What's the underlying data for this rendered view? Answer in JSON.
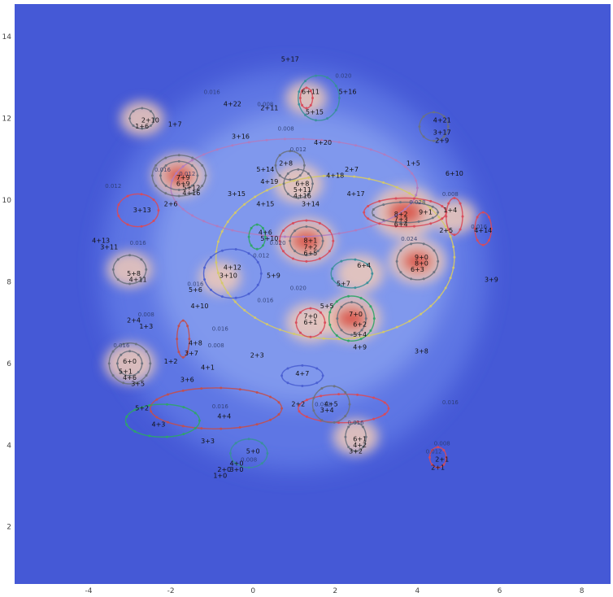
{
  "chart_data": {
    "type": "contour",
    "title": "",
    "xlabel": "",
    "ylabel": "",
    "xlim": [
      -5.8,
      8.7
    ],
    "ylim": [
      0.6,
      14.8
    ],
    "x_ticks": [
      -4,
      -2,
      0,
      2,
      4,
      6,
      8
    ],
    "y_ticks": [
      2,
      4,
      6,
      8,
      10,
      12,
      14
    ],
    "colors": {
      "background": "#4559d6",
      "low": "#5f79e6",
      "mid": "#9fb4f5",
      "high": "#f0c9b6",
      "peak": "#d9473a"
    },
    "density_peaks": [
      {
        "x": 3.7,
        "y": 9.7,
        "level": 1.0
      },
      {
        "x": 1.3,
        "y": 9.0,
        "level": 0.8
      },
      {
        "x": 4.0,
        "y": 8.5,
        "level": 0.75
      },
      {
        "x": 2.4,
        "y": 7.1,
        "level": 0.8
      },
      {
        "x": -1.8,
        "y": 10.6,
        "level": 0.7
      },
      {
        "x": 1.1,
        "y": 10.4,
        "level": 0.55
      },
      {
        "x": -3.0,
        "y": 6.0,
        "level": 0.6
      },
      {
        "x": -3.0,
        "y": 8.3,
        "level": 0.45
      },
      {
        "x": 1.4,
        "y": 7.0,
        "level": 0.55
      },
      {
        "x": 2.6,
        "y": 8.2,
        "level": 0.5
      },
      {
        "x": 2.5,
        "y": 4.2,
        "level": 0.45
      },
      {
        "x": 4.9,
        "y": 9.6,
        "level": 0.4
      },
      {
        "x": -0.8,
        "y": 8.1,
        "level": 0.35
      },
      {
        "x": 1.3,
        "y": 12.5,
        "level": 0.35
      },
      {
        "x": -2.7,
        "y": 12.0,
        "level": 0.4
      }
    ],
    "point_labels": [
      {
        "text": "5+17",
        "x": 0.9,
        "y": 13.4
      },
      {
        "text": "6+11",
        "x": 1.4,
        "y": 12.6
      },
      {
        "text": "5+16",
        "x": 2.3,
        "y": 12.6
      },
      {
        "text": "4+22",
        "x": -0.5,
        "y": 12.3
      },
      {
        "text": "2+11",
        "x": 0.4,
        "y": 12.2
      },
      {
        "text": "5+15",
        "x": 1.5,
        "y": 12.1
      },
      {
        "text": "4+21",
        "x": 4.6,
        "y": 11.9
      },
      {
        "text": "2+10",
        "x": -2.5,
        "y": 11.9
      },
      {
        "text": "1+7",
        "x": -1.9,
        "y": 11.8
      },
      {
        "text": "1+6",
        "x": -2.7,
        "y": 11.75
      },
      {
        "text": "3+17",
        "x": 4.6,
        "y": 11.6
      },
      {
        "text": "3+16",
        "x": -0.3,
        "y": 11.5
      },
      {
        "text": "2+9",
        "x": 4.6,
        "y": 11.4
      },
      {
        "text": "4+20",
        "x": 1.7,
        "y": 11.35
      },
      {
        "text": "2+8",
        "x": 0.8,
        "y": 10.85
      },
      {
        "text": "1+5",
        "x": 3.9,
        "y": 10.85
      },
      {
        "text": "5+14",
        "x": 0.3,
        "y": 10.7
      },
      {
        "text": "2+7",
        "x": 2.4,
        "y": 10.7
      },
      {
        "text": "4+18",
        "x": 2.0,
        "y": 10.55
      },
      {
        "text": "6+10",
        "x": 4.9,
        "y": 10.6
      },
      {
        "text": "7+9",
        "x": -1.7,
        "y": 10.5
      },
      {
        "text": "6+9",
        "x": -1.7,
        "y": 10.35
      },
      {
        "text": "6+8",
        "x": 1.2,
        "y": 10.35
      },
      {
        "text": "4+19",
        "x": 0.4,
        "y": 10.4
      },
      {
        "text": "5+12",
        "x": -1.5,
        "y": 10.25
      },
      {
        "text": "4+16",
        "x": -1.5,
        "y": 10.12
      },
      {
        "text": "5+11",
        "x": 1.2,
        "y": 10.2
      },
      {
        "text": "3+15",
        "x": -0.4,
        "y": 10.1
      },
      {
        "text": "4+16",
        "x": 1.2,
        "y": 10.05
      },
      {
        "text": "4+17",
        "x": 2.5,
        "y": 10.1
      },
      {
        "text": "4+15",
        "x": 0.3,
        "y": 9.85
      },
      {
        "text": "3+14",
        "x": 1.4,
        "y": 9.85
      },
      {
        "text": "2+6",
        "x": -2.0,
        "y": 9.85
      },
      {
        "text": "3+13",
        "x": -2.7,
        "y": 9.7
      },
      {
        "text": "1+4",
        "x": 4.8,
        "y": 9.7
      },
      {
        "text": "8+2",
        "x": 3.6,
        "y": 9.6
      },
      {
        "text": "9+1",
        "x": 4.2,
        "y": 9.65
      },
      {
        "text": "7+3",
        "x": 3.6,
        "y": 9.47
      },
      {
        "text": "6+4",
        "x": 3.6,
        "y": 9.35
      },
      {
        "text": "4+14",
        "x": 5.6,
        "y": 9.2
      },
      {
        "text": "2+5",
        "x": 4.7,
        "y": 9.2
      },
      {
        "text": "4+6",
        "x": 0.3,
        "y": 9.15
      },
      {
        "text": "5+10",
        "x": 0.4,
        "y": 9.0
      },
      {
        "text": "8+1",
        "x": 1.4,
        "y": 8.95
      },
      {
        "text": "7+2",
        "x": 1.4,
        "y": 8.8
      },
      {
        "text": "6+5",
        "x": 1.4,
        "y": 8.65
      },
      {
        "text": "4+13",
        "x": -3.7,
        "y": 8.95
      },
      {
        "text": "3+11",
        "x": -3.5,
        "y": 8.8
      },
      {
        "text": "9+0",
        "x": 4.1,
        "y": 8.55
      },
      {
        "text": "8+0",
        "x": 4.1,
        "y": 8.4
      },
      {
        "text": "6+3",
        "x": 4.0,
        "y": 8.25
      },
      {
        "text": "6+4",
        "x": 2.7,
        "y": 8.35
      },
      {
        "text": "4+12",
        "x": -0.5,
        "y": 8.3
      },
      {
        "text": "3+10",
        "x": -0.6,
        "y": 8.1
      },
      {
        "text": "5+9",
        "x": 0.5,
        "y": 8.1
      },
      {
        "text": "5+8",
        "x": -2.9,
        "y": 8.15
      },
      {
        "text": "4+11",
        "x": -2.8,
        "y": 8.0
      },
      {
        "text": "3+9",
        "x": 5.8,
        "y": 8.0
      },
      {
        "text": "5+7",
        "x": 2.2,
        "y": 7.9
      },
      {
        "text": "5+6",
        "x": -1.4,
        "y": 7.75
      },
      {
        "text": "5+5",
        "x": 1.8,
        "y": 7.35
      },
      {
        "text": "4+10",
        "x": -1.3,
        "y": 7.35
      },
      {
        "text": "7+0",
        "x": 2.5,
        "y": 7.15
      },
      {
        "text": "7+0",
        "x": 1.4,
        "y": 7.1
      },
      {
        "text": "2+4",
        "x": -2.9,
        "y": 7.0
      },
      {
        "text": "1+3",
        "x": -2.6,
        "y": 6.85
      },
      {
        "text": "6+1",
        "x": 1.4,
        "y": 6.95
      },
      {
        "text": "6+2",
        "x": 2.6,
        "y": 6.9
      },
      {
        "text": "5+4",
        "x": 2.6,
        "y": 6.65
      },
      {
        "text": "4+9",
        "x": 2.6,
        "y": 6.35
      },
      {
        "text": "4+8",
        "x": -1.4,
        "y": 6.45
      },
      {
        "text": "3+7",
        "x": -1.5,
        "y": 6.2
      },
      {
        "text": "3+8",
        "x": 4.1,
        "y": 6.25
      },
      {
        "text": "2+3",
        "x": 0.1,
        "y": 6.15
      },
      {
        "text": "6+0",
        "x": -3.0,
        "y": 6.0
      },
      {
        "text": "1+2",
        "x": -2.0,
        "y": 6.0
      },
      {
        "text": "4+1",
        "x": -1.1,
        "y": 5.85
      },
      {
        "text": "5+1",
        "x": -3.1,
        "y": 5.75
      },
      {
        "text": "4+6",
        "x": -3.0,
        "y": 5.6
      },
      {
        "text": "4+7",
        "x": 1.2,
        "y": 5.7
      },
      {
        "text": "3+6",
        "x": -1.6,
        "y": 5.55
      },
      {
        "text": "3+5",
        "x": -2.8,
        "y": 5.45
      },
      {
        "text": "5+2",
        "x": -2.7,
        "y": 4.85
      },
      {
        "text": "2+2",
        "x": 1.1,
        "y": 4.95
      },
      {
        "text": "4+5",
        "x": 1.9,
        "y": 4.95
      },
      {
        "text": "3+4",
        "x": 1.8,
        "y": 4.8
      },
      {
        "text": "4+4",
        "x": -0.7,
        "y": 4.65
      },
      {
        "text": "4+3",
        "x": -2.3,
        "y": 4.45
      },
      {
        "text": "6+1",
        "x": 2.6,
        "y": 4.1
      },
      {
        "text": "4+2",
        "x": 2.6,
        "y": 3.95
      },
      {
        "text": "3+3",
        "x": -1.1,
        "y": 4.05
      },
      {
        "text": "3+2",
        "x": 2.5,
        "y": 3.8
      },
      {
        "text": "5+0",
        "x": 0.0,
        "y": 3.8
      },
      {
        "text": "2+1",
        "x": 4.6,
        "y": 3.6
      },
      {
        "text": "4+0",
        "x": -0.4,
        "y": 3.5
      },
      {
        "text": "3+0",
        "x": -0.4,
        "y": 3.35
      },
      {
        "text": "2+0",
        "x": -0.7,
        "y": 3.35
      },
      {
        "text": "1+0",
        "x": -0.8,
        "y": 3.2
      },
      {
        "text": "2+1",
        "x": 4.5,
        "y": 3.4
      }
    ],
    "contour_level_labels": [
      {
        "text": "0.016",
        "x": -1.0,
        "y": 12.6
      },
      {
        "text": "0.008",
        "x": 0.3,
        "y": 12.3
      },
      {
        "text": "0.020",
        "x": 2.2,
        "y": 13.0
      },
      {
        "text": "0.008",
        "x": 0.8,
        "y": 11.7
      },
      {
        "text": "0.012",
        "x": 1.1,
        "y": 11.2
      },
      {
        "text": "0.016",
        "x": -2.2,
        "y": 10.7
      },
      {
        "text": "0.012",
        "x": -1.6,
        "y": 10.6
      },
      {
        "text": "0.012",
        "x": -3.4,
        "y": 10.3
      },
      {
        "text": "0.028",
        "x": 4.0,
        "y": 9.9
      },
      {
        "text": "0.008",
        "x": 4.8,
        "y": 10.1
      },
      {
        "text": "0.016",
        "x": 5.5,
        "y": 9.3
      },
      {
        "text": "0.024",
        "x": 3.8,
        "y": 9.0
      },
      {
        "text": "0.016",
        "x": -2.8,
        "y": 8.9
      },
      {
        "text": "0.012",
        "x": 0.2,
        "y": 8.6
      },
      {
        "text": "0.020",
        "x": 0.6,
        "y": 8.9
      },
      {
        "text": "0.016",
        "x": -1.4,
        "y": 7.9
      },
      {
        "text": "0.016",
        "x": 0.3,
        "y": 7.5
      },
      {
        "text": "0.020",
        "x": 1.1,
        "y": 7.8
      },
      {
        "text": "0.008",
        "x": -2.6,
        "y": 7.15
      },
      {
        "text": "0.016",
        "x": -0.8,
        "y": 6.8
      },
      {
        "text": "0.008",
        "x": -0.9,
        "y": 6.4
      },
      {
        "text": "0.016",
        "x": -3.2,
        "y": 6.4
      },
      {
        "text": "0.016",
        "x": 2.5,
        "y": 4.5
      },
      {
        "text": "0.016",
        "x": -0.8,
        "y": 4.9
      },
      {
        "text": "0.012",
        "x": 1.7,
        "y": 4.95
      },
      {
        "text": "0.008",
        "x": -0.1,
        "y": 3.6
      },
      {
        "text": "0.012",
        "x": 4.4,
        "y": 3.8
      },
      {
        "text": "0.008",
        "x": 4.6,
        "y": 4.0
      },
      {
        "text": "0.016",
        "x": 4.8,
        "y": 5.0
      }
    ],
    "contour_lines": [
      {
        "color": "#d4c96a",
        "cx": 2.0,
        "cy": 8.6,
        "rx": 2.9,
        "ry": 2.0
      },
      {
        "color": "#b07cc0",
        "cx": 1.0,
        "cy": 10.3,
        "rx": 3.0,
        "ry": 1.2
      },
      {
        "color": "#4a5fd1",
        "cx": -0.5,
        "cy": 8.2,
        "rx": 0.7,
        "ry": 0.6
      },
      {
        "color": "#3a8f9a",
        "cx": 2.4,
        "cy": 8.2,
        "rx": 0.5,
        "ry": 0.35
      },
      {
        "color": "#d84a5a",
        "cx": 2.2,
        "cy": 4.9,
        "rx": 1.1,
        "ry": 0.35
      },
      {
        "color": "#c24f4f",
        "cx": -0.9,
        "cy": 4.9,
        "rx": 1.6,
        "ry": 0.5
      },
      {
        "color": "#2fa567",
        "cx": -2.2,
        "cy": 4.6,
        "rx": 0.9,
        "ry": 0.4
      },
      {
        "color": "#d84a5a",
        "cx": -2.8,
        "cy": 9.75,
        "rx": 0.5,
        "ry": 0.4
      },
      {
        "color": "#3a8f9a",
        "cx": 1.6,
        "cy": 12.5,
        "rx": 0.5,
        "ry": 0.55
      },
      {
        "color": "#d84a5a",
        "cx": 1.3,
        "cy": 12.5,
        "rx": 0.15,
        "ry": 0.25
      },
      {
        "color": "#6b7280",
        "cx": -1.8,
        "cy": 10.6,
        "rx": 0.65,
        "ry": 0.5
      },
      {
        "color": "#6b7280",
        "cx": -1.8,
        "cy": 10.6,
        "rx": 0.45,
        "ry": 0.35
      },
      {
        "color": "#d84a5a",
        "cx": 3.7,
        "cy": 9.7,
        "rx": 1.0,
        "ry": 0.35
      },
      {
        "color": "#6b7280",
        "cx": 3.7,
        "cy": 9.7,
        "rx": 0.8,
        "ry": 0.25
      },
      {
        "color": "#6b7280",
        "cx": 4.0,
        "cy": 8.5,
        "rx": 0.5,
        "ry": 0.45
      },
      {
        "color": "#d84a5a",
        "cx": 1.3,
        "cy": 9.0,
        "rx": 0.65,
        "ry": 0.5
      },
      {
        "color": "#6b7280",
        "cx": 1.3,
        "cy": 9.0,
        "rx": 0.4,
        "ry": 0.35
      },
      {
        "color": "#2fa567",
        "cx": 2.4,
        "cy": 7.1,
        "rx": 0.55,
        "ry": 0.55
      },
      {
        "color": "#6b7280",
        "cx": 2.4,
        "cy": 7.1,
        "rx": 0.35,
        "ry": 0.4
      },
      {
        "color": "#6b7280",
        "cx": -3.0,
        "cy": 6.0,
        "rx": 0.5,
        "ry": 0.5
      },
      {
        "color": "#6b7280",
        "cx": -3.0,
        "cy": 6.0,
        "rx": 0.3,
        "ry": 0.3
      },
      {
        "color": "#6b7280",
        "cx": -3.0,
        "cy": 8.3,
        "rx": 0.4,
        "ry": 0.35
      },
      {
        "color": "#d84a5a",
        "cx": 1.4,
        "cy": 7.0,
        "rx": 0.35,
        "ry": 0.35
      },
      {
        "color": "#6b7280",
        "cx": 1.1,
        "cy": 10.4,
        "rx": 0.35,
        "ry": 0.35
      },
      {
        "color": "#d84a5a",
        "cx": 4.9,
        "cy": 9.6,
        "rx": 0.2,
        "ry": 0.45
      },
      {
        "color": "#d84a5a",
        "cx": 5.6,
        "cy": 9.3,
        "rx": 0.2,
        "ry": 0.4
      },
      {
        "color": "#6b7280",
        "cx": 2.5,
        "cy": 4.2,
        "rx": 0.25,
        "ry": 0.35
      },
      {
        "color": "#2fa567",
        "cx": 0.1,
        "cy": 9.1,
        "rx": 0.2,
        "ry": 0.3
      },
      {
        "color": "#c24f4f",
        "cx": -1.7,
        "cy": 6.6,
        "rx": 0.15,
        "ry": 0.45
      },
      {
        "color": "#6b7280",
        "cx": -2.7,
        "cy": 12.0,
        "rx": 0.3,
        "ry": 0.25
      },
      {
        "color": "#6b7280",
        "cx": 4.4,
        "cy": 11.8,
        "rx": 0.35,
        "ry": 0.35
      },
      {
        "color": "#d84a5a",
        "cx": 4.5,
        "cy": 3.7,
        "rx": 0.2,
        "ry": 0.25
      },
      {
        "color": "#3a8f9a",
        "cx": -0.1,
        "cy": 3.8,
        "rx": 0.45,
        "ry": 0.35
      },
      {
        "color": "#6b7280",
        "cx": 0.9,
        "cy": 10.85,
        "rx": 0.35,
        "ry": 0.35
      },
      {
        "color": "#4a5fd1",
        "cx": 1.2,
        "cy": 5.7,
        "rx": 0.5,
        "ry": 0.25
      },
      {
        "color": "#6b7280",
        "cx": 1.9,
        "cy": 5.0,
        "rx": 0.45,
        "ry": 0.45
      }
    ]
  }
}
